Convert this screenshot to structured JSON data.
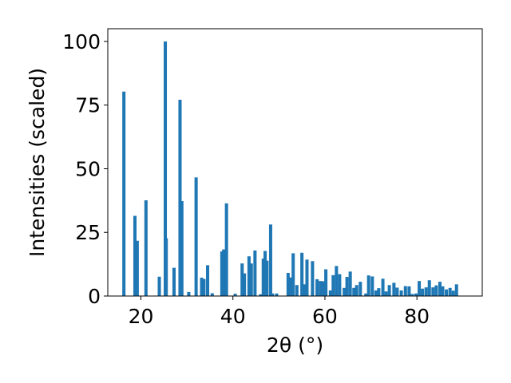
{
  "chart_data": {
    "type": "bar",
    "title": "",
    "xlabel": "2θ (°)",
    "ylabel": "Intensities (scaled)",
    "xlim": [
      12.8,
      94.2
    ],
    "ylim": [
      0,
      105
    ],
    "xticks": [
      "20",
      "40",
      "60",
      "80"
    ],
    "xtick_values": [
      20,
      40,
      60,
      80
    ],
    "yticks": [
      "0",
      "25",
      "50",
      "75",
      "100"
    ],
    "ytick_values": [
      0,
      25,
      50,
      75,
      100
    ],
    "grid": false,
    "bar_color": "#1f77b4",
    "bar_width": 0.7,
    "series": [
      {
        "x": [
          16.3,
          18.7,
          19.2,
          21.1,
          24.0,
          25.3,
          25.5,
          27.2,
          28.5,
          28.9,
          30.4,
          32.0,
          33.2,
          33.7,
          34.5,
          35.5,
          37.6,
          38.0,
          38.6,
          40.5,
          42.0,
          42.5,
          43.5,
          44.0,
          44.8,
          46.0,
          46.6,
          47.0,
          47.4,
          48.2,
          48.6,
          49.5,
          52.0,
          52.6,
          53.1,
          53.9,
          55.0,
          55.6,
          56.1,
          57.3,
          58.3,
          59.0,
          59.6,
          60.2,
          61.2,
          61.8,
          62.5,
          63.2,
          64.2,
          64.8,
          65.5,
          66.3,
          66.9,
          67.7,
          68.9,
          69.5,
          70.3,
          71.1,
          71.7,
          72.6,
          73.3,
          74.0,
          75.0,
          75.7,
          76.6,
          77.5,
          78.3,
          79.0,
          79.8,
          80.5,
          81.2,
          82.0,
          82.7,
          83.5,
          84.2,
          85.0,
          85.6,
          86.4,
          87.2,
          87.9,
          88.6
        ],
        "y": [
          80.3,
          31.5,
          21.7,
          37.6,
          7.6,
          100,
          22.7,
          11.1,
          77.1,
          37.3,
          1.6,
          46.6,
          7.2,
          6.7,
          12.1,
          1.1,
          17.5,
          18.3,
          36.4,
          0.9,
          12.8,
          8.9,
          15.6,
          12.8,
          17.9,
          0.7,
          14.7,
          17.7,
          13.9,
          28.1,
          1.0,
          1.0,
          9.1,
          7.3,
          16.8,
          4.3,
          17.0,
          4.6,
          14.3,
          13.7,
          6.6,
          5.9,
          5.8,
          10.5,
          2.2,
          8.2,
          11.8,
          8.6,
          3.2,
          7.5,
          9.6,
          3.2,
          4.3,
          5.6,
          1.0,
          8.1,
          7.7,
          2.2,
          3.1,
          6.8,
          1.8,
          4.3,
          5.2,
          3.3,
          2.2,
          3.9,
          3.8,
          0.8,
          1.0,
          5.9,
          2.9,
          3.4,
          6.2,
          3.4,
          4.2,
          5.6,
          3.8,
          2.6,
          3.2,
          2.1,
          4.6
        ]
      }
    ]
  }
}
